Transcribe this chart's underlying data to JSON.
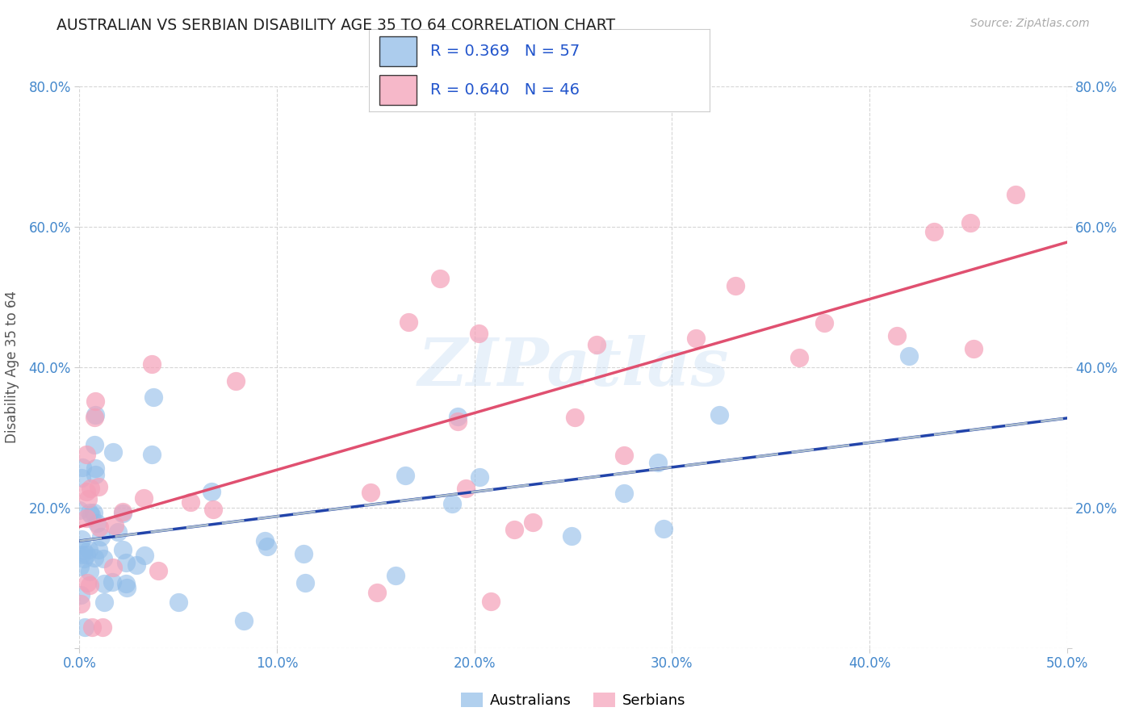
{
  "title": "AUSTRALIAN VS SERBIAN DISABILITY AGE 35 TO 64 CORRELATION CHART",
  "source": "Source: ZipAtlas.com",
  "ylabel": "Disability Age 35 to 64",
  "xlim": [
    0.0,
    0.5
  ],
  "ylim": [
    0.0,
    0.8
  ],
  "xticks": [
    0.0,
    0.1,
    0.2,
    0.3,
    0.4,
    0.5
  ],
  "yticks": [
    0.0,
    0.2,
    0.4,
    0.6,
    0.8
  ],
  "xticklabels": [
    "0.0%",
    "10.0%",
    "20.0%",
    "30.0%",
    "40.0%",
    "50.0%"
  ],
  "yticklabels_left": [
    "",
    "20.0%",
    "40.0%",
    "60.0%",
    "80.0%"
  ],
  "yticklabels_right": [
    "",
    "20.0%",
    "40.0%",
    "60.0%",
    "80.0%"
  ],
  "watermark": "ZIPatlas",
  "australian_R": 0.369,
  "australian_N": 57,
  "serbian_R": 0.64,
  "serbian_N": 46,
  "blue_color": "#90bce8",
  "pink_color": "#f4a0b8",
  "blue_line_color": "#2244aa",
  "pink_line_color": "#e05070",
  "dashed_line_color": "#aabbcc",
  "legend_text_color": "#2255cc",
  "legend_rn_color": "#000000",
  "title_color": "#222222",
  "axis_tick_color": "#4488cc",
  "grid_color": "#cccccc",
  "background_color": "#ffffff"
}
